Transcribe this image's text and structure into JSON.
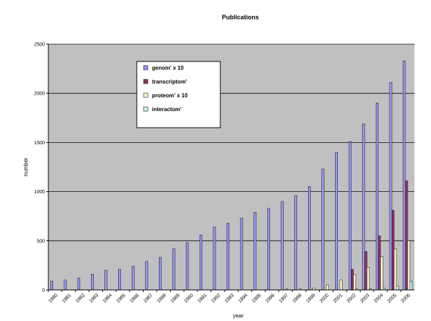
{
  "chart_data": {
    "type": "bar",
    "title": "Publications",
    "xlabel": "year",
    "ylabel": "number",
    "ylim": [
      0,
      2500
    ],
    "yticks": [
      "0",
      "500",
      "1000",
      "1500",
      "2000",
      "2500"
    ],
    "grid": true,
    "legend_position": "top-left",
    "categories": [
      "1980",
      "1981",
      "1982",
      "1983",
      "1984",
      "1985",
      "1986",
      "1987",
      "1988",
      "1989",
      "1990",
      "1991",
      "1992",
      "1993",
      "1994",
      "1995",
      "1996",
      "1997",
      "1998",
      "1999",
      "2000",
      "2001",
      "2002",
      "2003",
      "2004",
      "2005",
      "2006"
    ],
    "series": [
      {
        "name": "genom' x 10",
        "color": "#9999ff",
        "values": [
          90,
          100,
          120,
          160,
          200,
          210,
          240,
          290,
          330,
          420,
          480,
          560,
          640,
          680,
          730,
          790,
          830,
          900,
          960,
          1050,
          1230,
          1400,
          1510,
          1690,
          1900,
          2110,
          2330
        ]
      },
      {
        "name": "transcriptom'",
        "color": "#993366",
        "values": [
          0,
          0,
          0,
          0,
          0,
          0,
          0,
          0,
          0,
          0,
          0,
          0,
          0,
          0,
          0,
          0,
          0,
          0,
          0,
          0,
          0,
          0,
          210,
          390,
          550,
          810,
          1110
        ]
      },
      {
        "name": "proteom' x 10",
        "color": "#ffffcc",
        "values": [
          0,
          0,
          0,
          0,
          0,
          0,
          0,
          0,
          0,
          0,
          0,
          0,
          0,
          0,
          0,
          0,
          0,
          10,
          10,
          20,
          50,
          100,
          160,
          230,
          340,
          420,
          500
        ]
      },
      {
        "name": "interactom'",
        "color": "#ccffff",
        "values": [
          0,
          0,
          0,
          0,
          0,
          0,
          0,
          0,
          0,
          0,
          0,
          0,
          0,
          0,
          0,
          0,
          0,
          0,
          0,
          0,
          0,
          0,
          10,
          10,
          20,
          40,
          90
        ]
      }
    ]
  }
}
